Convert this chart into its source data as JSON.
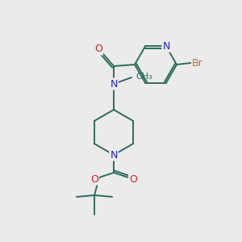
{
  "background_color": "#ebebeb",
  "bond_color": "#2d6b5e",
  "atom_colors": {
    "N": "#2222cc",
    "O": "#cc2222",
    "Br": "#b87333",
    "C": "#2d6b5e"
  },
  "figsize": [
    3.0,
    3.0
  ],
  "dpi": 100
}
